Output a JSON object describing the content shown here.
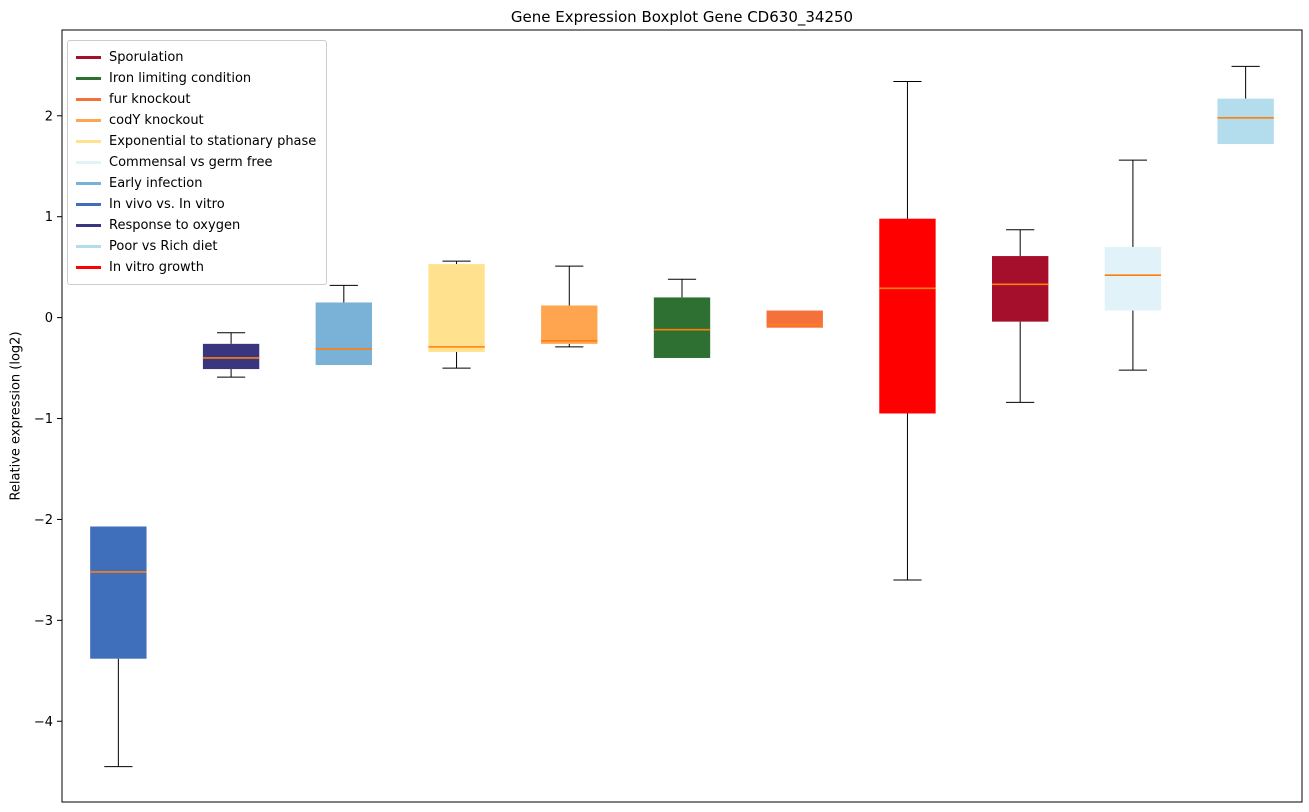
{
  "chart_data": {
    "type": "boxplot",
    "title": "Gene Expression Boxplot Gene CD630_34250",
    "ylabel": "Relative expression (log2)",
    "ylim": [
      -4.8,
      2.85
    ],
    "yticks": [
      2,
      1,
      0,
      -1,
      -2,
      -3,
      -4
    ],
    "grid": false,
    "legend_position": "upper left",
    "median_color": "#ff7f0e",
    "whisker_color": "#000000",
    "legend": [
      {
        "label": "Sporulation",
        "color": "#a50f2c"
      },
      {
        "label": "Iron limiting condition",
        "color": "#2e7031"
      },
      {
        "label": "fur knockout",
        "color": "#f4713c"
      },
      {
        "label": "codY knockout",
        "color": "#ffa54f"
      },
      {
        "label": "Exponential to stationary phase",
        "color": "#ffe18e"
      },
      {
        "label": "Commensal vs germ free",
        "color": "#e1f2f8"
      },
      {
        "label": "Early infection",
        "color": "#79b1d7"
      },
      {
        "label": "In vivo vs. In vitro",
        "color": "#3f6fba"
      },
      {
        "label": "Response to oxygen",
        "color": "#39357e"
      },
      {
        "label": "Poor vs Rich diet",
        "color": "#b3dcec"
      },
      {
        "label": "In vitro growth",
        "color": "#ff0000"
      }
    ],
    "series": [
      {
        "name": "In vivo vs. In vitro",
        "color": "#3f6fba",
        "whislo": -4.45,
        "q1": -3.38,
        "med": -2.52,
        "q3": -2.07,
        "whishi": -2.07
      },
      {
        "name": "Response to oxygen",
        "color": "#39357e",
        "whislo": -0.59,
        "q1": -0.51,
        "med": -0.4,
        "q3": -0.26,
        "whishi": -0.15
      },
      {
        "name": "Early infection",
        "color": "#79b1d7",
        "whislo": -0.47,
        "q1": -0.47,
        "med": -0.31,
        "q3": 0.15,
        "whishi": 0.32
      },
      {
        "name": "Exponential to stationary phase",
        "color": "#ffe18e",
        "whislo": -0.5,
        "q1": -0.34,
        "med": -0.29,
        "q3": 0.53,
        "whishi": 0.56
      },
      {
        "name": "codY knockout",
        "color": "#ffa54f",
        "whislo": -0.29,
        "q1": -0.26,
        "med": -0.23,
        "q3": 0.12,
        "whishi": 0.51
      },
      {
        "name": "Iron limiting condition",
        "color": "#2e7031",
        "whislo": -0.4,
        "q1": -0.4,
        "med": -0.12,
        "q3": 0.2,
        "whishi": 0.38
      },
      {
        "name": "fur knockout",
        "color": "#f4713c",
        "whislo": -0.1,
        "q1": -0.1,
        "med": -0.07,
        "q3": 0.07,
        "whishi": 0.07
      },
      {
        "name": "In vitro growth",
        "color": "#ff0000",
        "whislo": -2.6,
        "q1": -0.95,
        "med": 0.29,
        "q3": 0.98,
        "whishi": 2.34
      },
      {
        "name": "Sporulation",
        "color": "#a50f2c",
        "whislo": -0.84,
        "q1": -0.04,
        "med": 0.33,
        "q3": 0.61,
        "whishi": 0.87
      },
      {
        "name": "Commensal vs germ free",
        "color": "#e1f2f8",
        "whislo": -0.52,
        "q1": 0.07,
        "med": 0.42,
        "q3": 0.7,
        "whishi": 1.56
      },
      {
        "name": "Poor vs Rich diet",
        "color": "#b3dcec",
        "whislo": 1.72,
        "q1": 1.72,
        "med": 1.98,
        "q3": 2.17,
        "whishi": 2.49
      }
    ]
  }
}
